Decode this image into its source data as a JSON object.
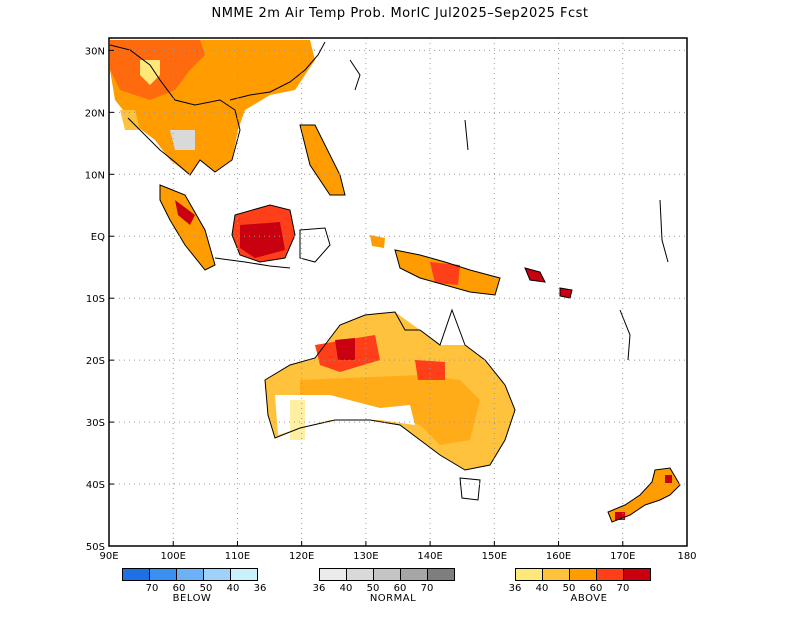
{
  "title": "NMME 2m Air Temp Prob. MorIC  Jul2025–Sep2025 Fcst",
  "map": {
    "lon_range": [
      90,
      180
    ],
    "lat_range": [
      -50,
      32
    ],
    "x_ticks": [
      "90E",
      "100E",
      "110E",
      "120E",
      "130E",
      "140E",
      "150E",
      "160E",
      "170E",
      "180"
    ],
    "y_ticks": [
      "30N",
      "20N",
      "10N",
      "EQ",
      "10S",
      "20S",
      "30S",
      "40S",
      "50S"
    ],
    "grid": "dotted"
  },
  "legend": {
    "below": {
      "label": "BELOW",
      "colors": [
        "#1f6fe6",
        "#3b8ff0",
        "#6cb0f5",
        "#9ed2fb",
        "#c8f2fb"
      ],
      "ticks": [
        "70",
        "60",
        "50",
        "40",
        "36"
      ]
    },
    "normal": {
      "label": "NORMAL",
      "colors": [
        "#ebebeb",
        "#d9d9d9",
        "#c4c4c4",
        "#a6a6a6",
        "#7e7e7e"
      ],
      "ticks": [
        "36",
        "40",
        "50",
        "60",
        "70"
      ]
    },
    "above": {
      "label": "ABOVE",
      "colors": [
        "#ffe87a",
        "#ffc23c",
        "#ff9d00",
        "#ff3f1a",
        "#c8000f"
      ],
      "ticks": [
        "36",
        "40",
        "50",
        "60",
        "70"
      ]
    }
  }
}
